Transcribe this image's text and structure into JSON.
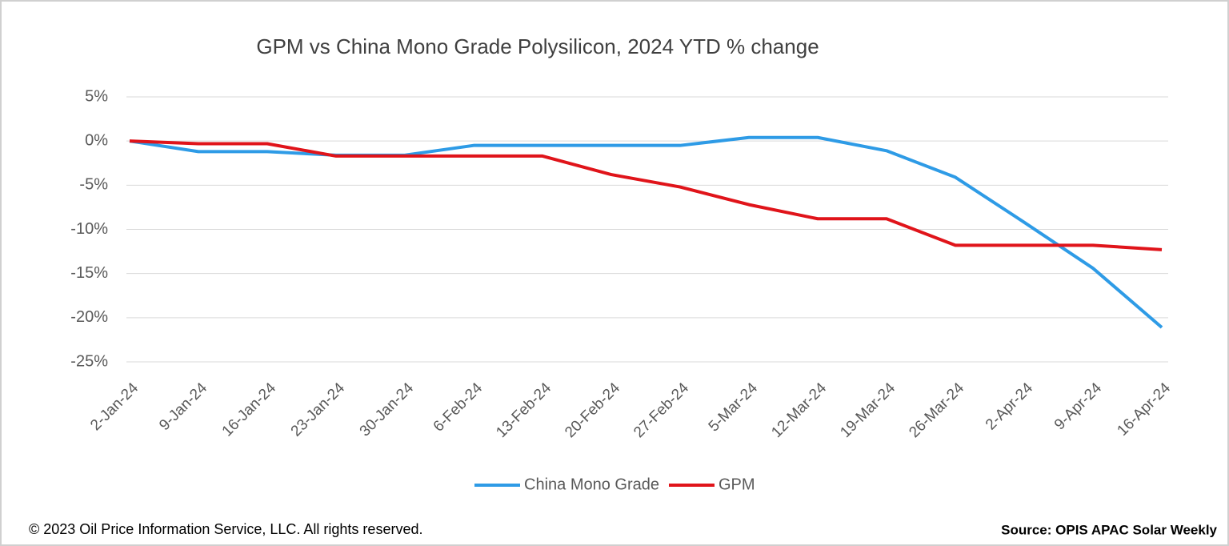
{
  "chart_data": {
    "type": "line",
    "title": "GPM vs China Mono Grade Polysilicon, 2024 YTD % change",
    "categories": [
      "2-Jan-24",
      "9-Jan-24",
      "16-Jan-24",
      "23-Jan-24",
      "30-Jan-24",
      "6-Feb-24",
      "13-Feb-24",
      "20-Feb-24",
      "27-Feb-24",
      "5-Mar-24",
      "12-Mar-24",
      "19-Mar-24",
      "26-Mar-24",
      "2-Apr-24",
      "9-Apr-24",
      "16-Apr-24"
    ],
    "series": [
      {
        "name": "China Mono Grade",
        "color": "#2e9be6",
        "values": [
          0,
          -1.2,
          -1.2,
          -1.6,
          -1.6,
          -0.5,
          -0.5,
          -0.5,
          -0.5,
          0.4,
          0.4,
          -1.1,
          -4.1,
          -9.2,
          -14.4,
          -21.1
        ]
      },
      {
        "name": "GPM",
        "color": "#e0141a",
        "values": [
          0,
          -0.3,
          -0.3,
          -1.7,
          -1.7,
          -1.7,
          -1.7,
          -3.8,
          -5.2,
          -7.2,
          -8.8,
          -8.8,
          -11.8,
          -11.8,
          -11.8,
          -12.3
        ]
      }
    ],
    "ylim": [
      -25,
      5
    ],
    "yticks": [
      {
        "value": 5,
        "label": "5%"
      },
      {
        "value": 0,
        "label": "0%"
      },
      {
        "value": -5,
        "label": "-5%"
      },
      {
        "value": -10,
        "label": "-10%"
      },
      {
        "value": -15,
        "label": "-15%"
      },
      {
        "value": -20,
        "label": "-20%"
      },
      {
        "value": -25,
        "label": "-25%"
      }
    ],
    "grid": true,
    "legend": "bottom"
  },
  "footer": {
    "copyright": "© 2023 Oil Price Information Service, LLC. All rights reserved.",
    "source": "Source: OPIS APAC Solar Weekly"
  }
}
